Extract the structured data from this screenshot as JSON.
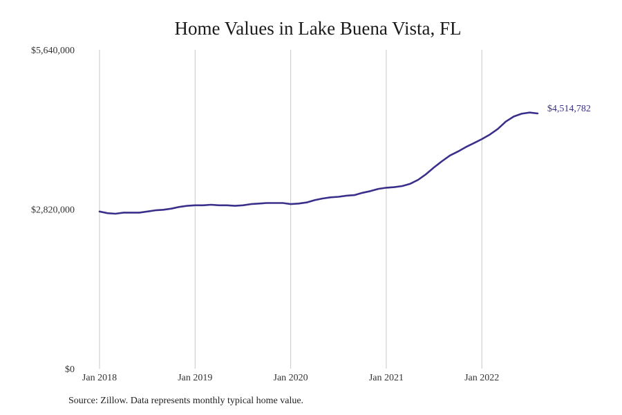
{
  "chart_data": {
    "type": "line",
    "title": "Home Values in Lake Buena Vista, FL",
    "source": "Source: Zillow. Data represents monthly typical home value.",
    "ylim": [
      0,
      5640000
    ],
    "y_ticks": [
      "$0",
      "$2,820,000",
      "$5,640,000"
    ],
    "x_ticks": [
      "Jan 2018",
      "Jan 2019",
      "Jan 2020",
      "Jan 2021",
      "Jan 2022"
    ],
    "grid": "vertical",
    "line_color": "#3a2f8a",
    "end_label": "$4,514,782",
    "x": [
      "2018-01",
      "2018-02",
      "2018-03",
      "2018-04",
      "2018-05",
      "2018-06",
      "2018-07",
      "2018-08",
      "2018-09",
      "2018-10",
      "2018-11",
      "2018-12",
      "2019-01",
      "2019-02",
      "2019-03",
      "2019-04",
      "2019-05",
      "2019-06",
      "2019-07",
      "2019-08",
      "2019-09",
      "2019-10",
      "2019-11",
      "2019-12",
      "2020-01",
      "2020-02",
      "2020-03",
      "2020-04",
      "2020-05",
      "2020-06",
      "2020-07",
      "2020-08",
      "2020-09",
      "2020-10",
      "2020-11",
      "2020-12",
      "2021-01",
      "2021-02",
      "2021-03",
      "2021-04",
      "2021-05",
      "2021-06",
      "2021-07",
      "2021-08",
      "2021-09",
      "2021-10",
      "2021-11",
      "2021-12",
      "2022-01",
      "2022-02",
      "2022-03",
      "2022-04",
      "2022-05",
      "2022-06",
      "2022-07",
      "2022-08"
    ],
    "values": [
      2780000,
      2750000,
      2740000,
      2760000,
      2760000,
      2760000,
      2780000,
      2800000,
      2810000,
      2830000,
      2860000,
      2880000,
      2890000,
      2890000,
      2900000,
      2890000,
      2890000,
      2880000,
      2890000,
      2910000,
      2920000,
      2930000,
      2930000,
      2930000,
      2910000,
      2920000,
      2940000,
      2980000,
      3010000,
      3030000,
      3040000,
      3060000,
      3070000,
      3110000,
      3140000,
      3180000,
      3200000,
      3210000,
      3230000,
      3270000,
      3340000,
      3440000,
      3560000,
      3670000,
      3770000,
      3840000,
      3920000,
      3990000,
      4060000,
      4140000,
      4240000,
      4370000,
      4460000,
      4510000,
      4530000,
      4514782
    ]
  }
}
